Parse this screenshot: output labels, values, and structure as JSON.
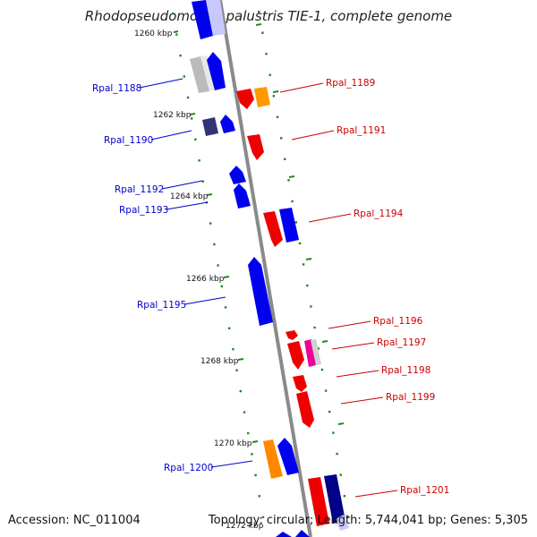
{
  "title": "Rhodopseudomonas palustris TIE-1, complete genome",
  "accession": "Accession: NC_011004",
  "stats": "Topology: circular; Length: 5,744,041 bp; Genes: 5,305",
  "colors": {
    "forward_label": "#cc0000",
    "reverse_label": "#0000cc",
    "backbone": "#8a8a8a",
    "tick": "#228822"
  },
  "ticks": [
    "1260 kbp",
    "1262 kbp",
    "1264 kbp",
    "1266 kbp",
    "1268 kbp",
    "1270 kbp",
    "1272 kbp"
  ],
  "gene_labels": {
    "left": [
      "Rpal_1188",
      "Rpal_1190",
      "Rpal_1192",
      "Rpal_1193",
      "Rpal_1195",
      "Rpal_1200"
    ],
    "right": [
      "Rpal_1189",
      "Rpal_1191",
      "Rpal_1194",
      "Rpal_1196",
      "Rpal_1197",
      "Rpal_1198",
      "Rpal_1199",
      "Rpal_1201"
    ]
  }
}
